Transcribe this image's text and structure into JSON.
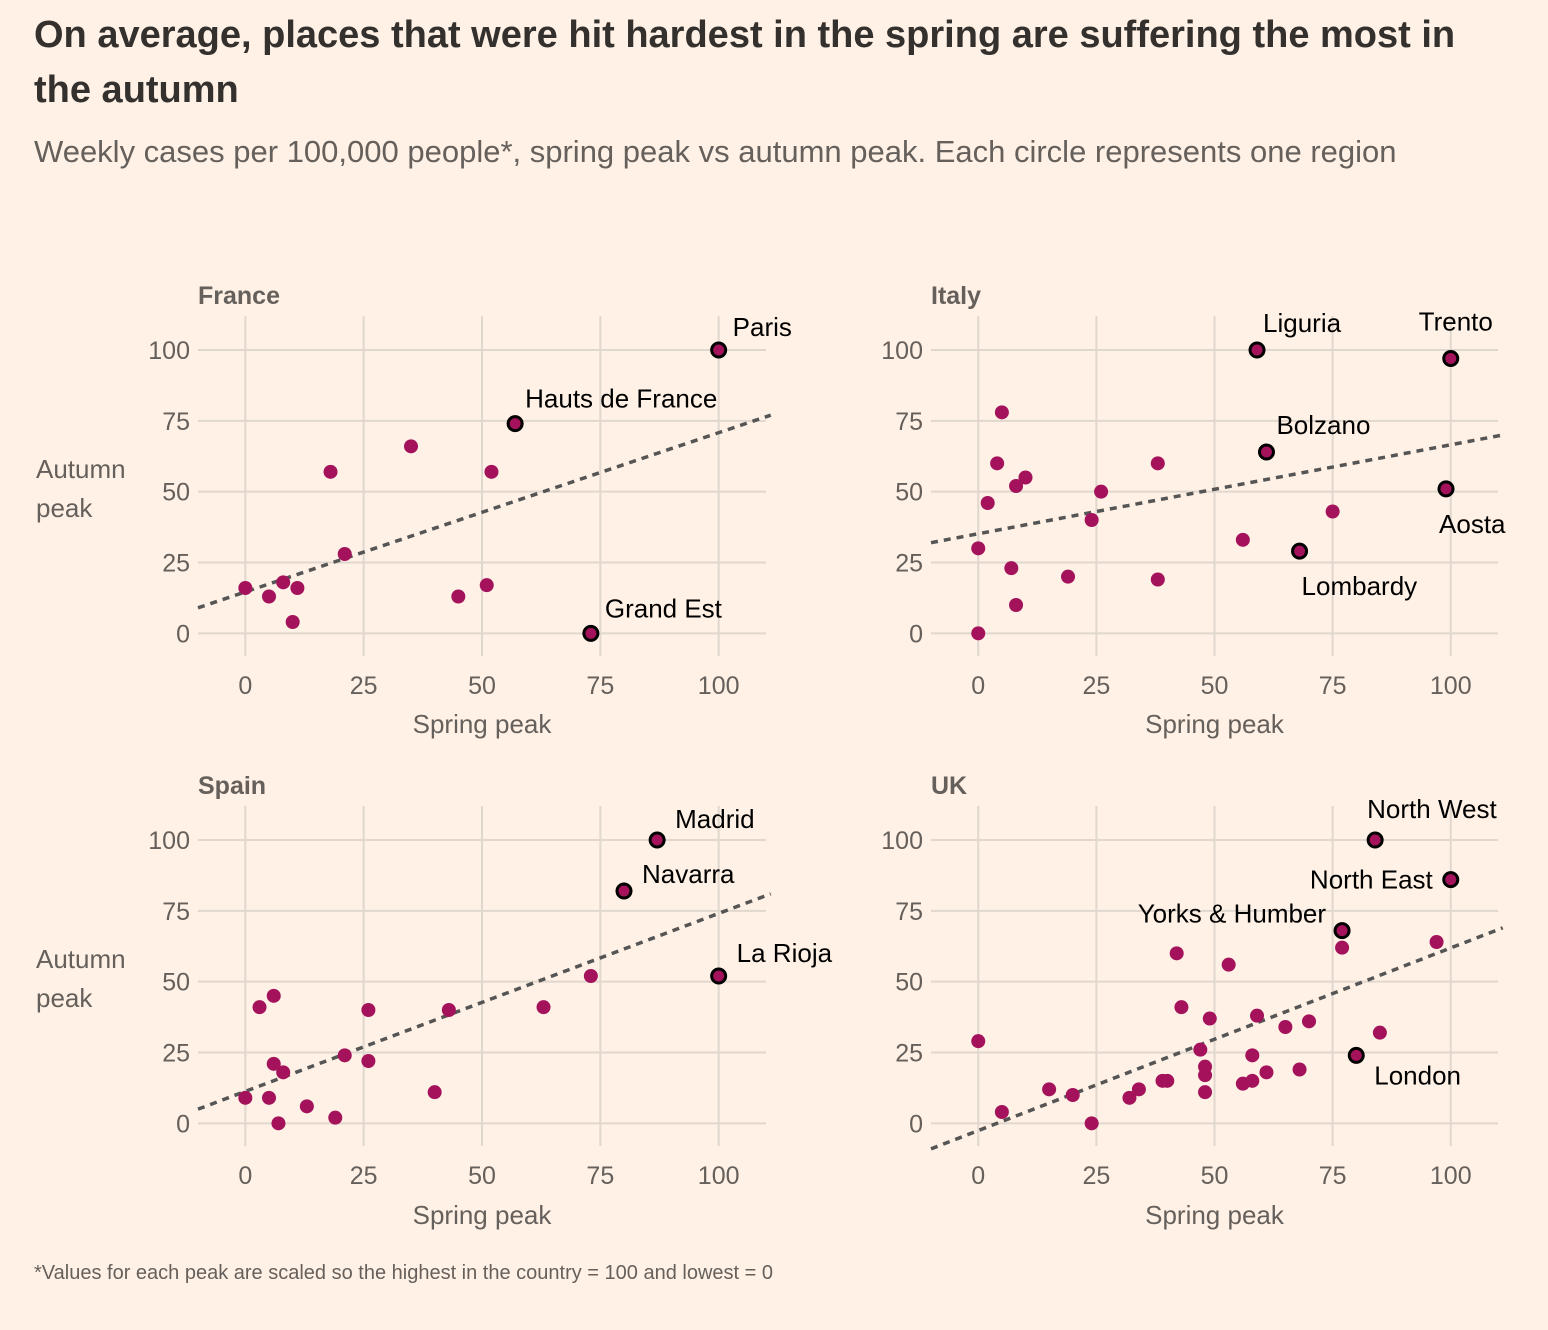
{
  "title": "On average, places that were hit hardest in the spring are suffering the most in the autumn",
  "subtitle": "Weekly cases per 100,000 people*, spring peak vs autumn peak. Each circle represents one region",
  "footnote": "*Values for each peak are scaled so the highest in the country = 100 and lowest = 0",
  "colors": {
    "background": "#fff1e5",
    "dot": "#a3125b",
    "highlight_stroke": "#000000",
    "trend": "#555555",
    "grid": "#e0d7cf"
  },
  "chart_data": [
    {
      "type": "scatter",
      "title": "France",
      "xlabel": "Spring peak",
      "ylabel": [
        "Autumn",
        "peak"
      ],
      "xlim": [
        -10,
        110
      ],
      "ylim": [
        -8,
        112
      ],
      "xticks": [
        0,
        25,
        50,
        75,
        100
      ],
      "yticks": [
        0,
        25,
        50,
        75,
        100
      ],
      "trend": {
        "x1": -10,
        "y1": 9,
        "x2": 111,
        "y2": 77
      },
      "points": [
        {
          "x": 0,
          "y": 16
        },
        {
          "x": 5,
          "y": 13
        },
        {
          "x": 8,
          "y": 18
        },
        {
          "x": 11,
          "y": 16
        },
        {
          "x": 10,
          "y": 4
        },
        {
          "x": 18,
          "y": 57
        },
        {
          "x": 21,
          "y": 28
        },
        {
          "x": 35,
          "y": 66
        },
        {
          "x": 45,
          "y": 13
        },
        {
          "x": 51,
          "y": 17
        },
        {
          "x": 52,
          "y": 57
        }
      ],
      "highlights": [
        {
          "label": "Paris",
          "x": 100,
          "y": 100,
          "anchor": "start",
          "dx": 14,
          "dy": -14
        },
        {
          "label": "Hauts de France",
          "x": 57,
          "y": 74,
          "anchor": "start",
          "dx": 10,
          "dy": -16
        },
        {
          "label": "Grand Est",
          "x": 73,
          "y": 0,
          "anchor": "start",
          "dx": 14,
          "dy": -16
        }
      ]
    },
    {
      "type": "scatter",
      "title": "Italy",
      "xlabel": "Spring peak",
      "ylabel": [],
      "xlim": [
        -10,
        110
      ],
      "ylim": [
        -8,
        112
      ],
      "xticks": [
        0,
        25,
        50,
        75,
        100
      ],
      "yticks": [
        0,
        25,
        50,
        75,
        100
      ],
      "trend": {
        "x1": -10,
        "y1": 32,
        "x2": 111,
        "y2": 70
      },
      "points": [
        {
          "x": 0,
          "y": 0
        },
        {
          "x": 0,
          "y": 30
        },
        {
          "x": 2,
          "y": 46
        },
        {
          "x": 4,
          "y": 60
        },
        {
          "x": 5,
          "y": 78
        },
        {
          "x": 7,
          "y": 23
        },
        {
          "x": 8,
          "y": 52
        },
        {
          "x": 8,
          "y": 10
        },
        {
          "x": 10,
          "y": 55
        },
        {
          "x": 19,
          "y": 20
        },
        {
          "x": 24,
          "y": 40
        },
        {
          "x": 26,
          "y": 50
        },
        {
          "x": 38,
          "y": 60
        },
        {
          "x": 38,
          "y": 19
        },
        {
          "x": 56,
          "y": 33
        },
        {
          "x": 75,
          "y": 43
        }
      ],
      "highlights": [
        {
          "label": "Liguria",
          "x": 59,
          "y": 100,
          "anchor": "start",
          "dx": 6,
          "dy": -18
        },
        {
          "label": "Trento",
          "x": 100,
          "y": 97,
          "anchor": "middle",
          "dx": 5,
          "dy": -28
        },
        {
          "label": "Bolzano",
          "x": 61,
          "y": 64,
          "anchor": "start",
          "dx": 10,
          "dy": -18
        },
        {
          "label": "Aosta",
          "x": 99,
          "y": 51,
          "anchor": "start",
          "dx": -7,
          "dy": 44
        },
        {
          "label": "Lombardy",
          "x": 68,
          "y": 29,
          "anchor": "start",
          "dx": 2,
          "dy": 44
        }
      ]
    },
    {
      "type": "scatter",
      "title": "Spain",
      "xlabel": "Spring peak",
      "ylabel": [
        "Autumn",
        "peak"
      ],
      "xlim": [
        -10,
        110
      ],
      "ylim": [
        -8,
        112
      ],
      "xticks": [
        0,
        25,
        50,
        75,
        100
      ],
      "yticks": [
        0,
        25,
        50,
        75,
        100
      ],
      "trend": {
        "x1": -10,
        "y1": 5,
        "x2": 111,
        "y2": 81
      },
      "points": [
        {
          "x": 0,
          "y": 9
        },
        {
          "x": 3,
          "y": 41
        },
        {
          "x": 5,
          "y": 9
        },
        {
          "x": 6,
          "y": 45
        },
        {
          "x": 6,
          "y": 21
        },
        {
          "x": 7,
          "y": 0
        },
        {
          "x": 8,
          "y": 18
        },
        {
          "x": 13,
          "y": 6
        },
        {
          "x": 19,
          "y": 2
        },
        {
          "x": 21,
          "y": 24
        },
        {
          "x": 26,
          "y": 40
        },
        {
          "x": 26,
          "y": 22
        },
        {
          "x": 40,
          "y": 11
        },
        {
          "x": 43,
          "y": 40
        },
        {
          "x": 63,
          "y": 41
        },
        {
          "x": 73,
          "y": 52
        }
      ],
      "highlights": [
        {
          "label": "Madrid",
          "x": 87,
          "y": 100,
          "anchor": "start",
          "dx": 18,
          "dy": -12
        },
        {
          "label": "Navarra",
          "x": 80,
          "y": 82,
          "anchor": "start",
          "dx": 18,
          "dy": -8
        },
        {
          "label": "La Rioja",
          "x": 100,
          "y": 52,
          "anchor": "start",
          "dx": 18,
          "dy": -14
        }
      ]
    },
    {
      "type": "scatter",
      "title": "UK",
      "xlabel": "Spring peak",
      "ylabel": [],
      "xlim": [
        -10,
        110
      ],
      "ylim": [
        -8,
        112
      ],
      "xticks": [
        0,
        25,
        50,
        75,
        100
      ],
      "yticks": [
        0,
        25,
        50,
        75,
        100
      ],
      "trend": {
        "x1": -10,
        "y1": -9,
        "x2": 111,
        "y2": 69
      },
      "points": [
        {
          "x": 0,
          "y": 29
        },
        {
          "x": 5,
          "y": 4
        },
        {
          "x": 15,
          "y": 12
        },
        {
          "x": 20,
          "y": 10
        },
        {
          "x": 24,
          "y": 0
        },
        {
          "x": 32,
          "y": 9
        },
        {
          "x": 34,
          "y": 12
        },
        {
          "x": 39,
          "y": 15
        },
        {
          "x": 40,
          "y": 15
        },
        {
          "x": 42,
          "y": 60
        },
        {
          "x": 43,
          "y": 41
        },
        {
          "x": 47,
          "y": 26
        },
        {
          "x": 48,
          "y": 20
        },
        {
          "x": 48,
          "y": 17
        },
        {
          "x": 48,
          "y": 11
        },
        {
          "x": 49,
          "y": 37
        },
        {
          "x": 53,
          "y": 56
        },
        {
          "x": 56,
          "y": 14
        },
        {
          "x": 58,
          "y": 24
        },
        {
          "x": 58,
          "y": 15
        },
        {
          "x": 59,
          "y": 38
        },
        {
          "x": 61,
          "y": 18
        },
        {
          "x": 65,
          "y": 34
        },
        {
          "x": 68,
          "y": 19
        },
        {
          "x": 70,
          "y": 36
        },
        {
          "x": 77,
          "y": 62
        },
        {
          "x": 85,
          "y": 32
        },
        {
          "x": 97,
          "y": 64
        }
      ],
      "highlights": [
        {
          "label": "North West",
          "x": 84,
          "y": 100,
          "anchor": "start",
          "dx": -8,
          "dy": -22
        },
        {
          "label": "North East",
          "x": 100,
          "y": 86,
          "anchor": "end",
          "dx": -18,
          "dy": 9
        },
        {
          "label": "Yorks & Humber",
          "x": 77,
          "y": 68,
          "anchor": "end",
          "dx": -16,
          "dy": -8
        },
        {
          "label": "London",
          "x": 80,
          "y": 24,
          "anchor": "start",
          "dx": 18,
          "dy": 29
        }
      ]
    }
  ]
}
